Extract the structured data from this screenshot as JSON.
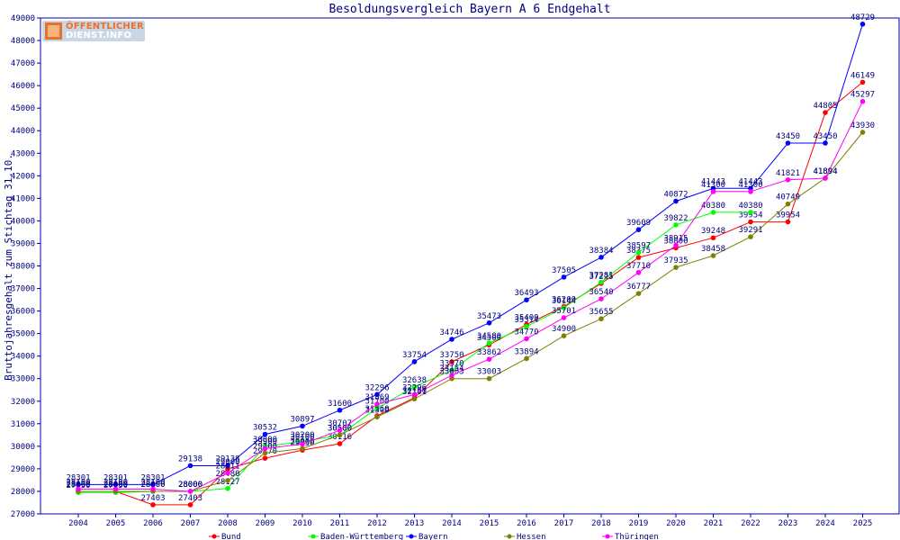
{
  "logo": {
    "line1": "ÖFFENTLICHER",
    "line2": "DIENST.INFO"
  },
  "colors": {
    "axis": "#0000aa",
    "text": "#000080",
    "grid": "#c8c8c8",
    "background": "#ffffff"
  },
  "chart_data": {
    "type": "line",
    "title": "Besoldungsvergleich Bayern A 6 Endgehalt",
    "ylabel": "Bruttojahresgehalt zum Stichtag 31.10.",
    "xlabel": "",
    "ylim": [
      27000,
      49000
    ],
    "ytick_step": 1000,
    "grid": false,
    "legend_position": "bottom",
    "x": [
      "2004",
      "2005",
      "2006",
      "2007",
      "2008",
      "2009",
      "2010",
      "2011",
      "2012",
      "2013",
      "2014",
      "2015",
      "2016",
      "2017",
      "2018",
      "2019",
      "2020",
      "2021",
      "2022",
      "2023",
      "2024",
      "2025"
    ],
    "series": [
      {
        "name": "Bund",
        "color": "#ff0000",
        "values": [
          28000,
          28000,
          27403,
          27403,
          29000,
          29470,
          29830,
          30116,
          31350,
          32150,
          33750,
          34500,
          35400,
          36200,
          37225,
          38375,
          38800,
          39248,
          39954,
          39954,
          44805,
          46149
        ]
      },
      {
        "name": "Baden-Württemberg",
        "color": "#00ff00",
        "values": [
          27950,
          27950,
          28000,
          28000,
          28127,
          30000,
          30200,
          30500,
          31700,
          32638,
          33370,
          34580,
          35314,
          36144,
          37281,
          38597,
          39822,
          40380,
          40380,
          null,
          null,
          null
        ]
      },
      {
        "name": "Bayern",
        "color": "#0000ff",
        "values": [
          28301,
          28301,
          28301,
          29138,
          29138,
          30532,
          30897,
          31600,
          32296,
          33754,
          34746,
          35473,
          36493,
          37505,
          38384,
          39609,
          40872,
          41443,
          41443,
          43450,
          43450,
          48729
        ]
      },
      {
        "name": "Hessen",
        "color": "#808000",
        "values": [
          28000,
          28000,
          28000,
          28000,
          28480,
          29700,
          29900,
          30500,
          31300,
          32101,
          33003,
          33003,
          33894,
          34900,
          35655,
          36777,
          37935,
          38458,
          39291,
          40749,
          41894,
          43930
        ]
      },
      {
        "name": "Thüringen",
        "color": "#ff00ff",
        "values": [
          28100,
          28100,
          28100,
          28000,
          28811,
          29900,
          30100,
          30707,
          31869,
          32296,
          33154,
          33862,
          34770,
          35701,
          36540,
          37710,
          38915,
          41300,
          41300,
          41821,
          41894,
          45297
        ]
      }
    ]
  }
}
